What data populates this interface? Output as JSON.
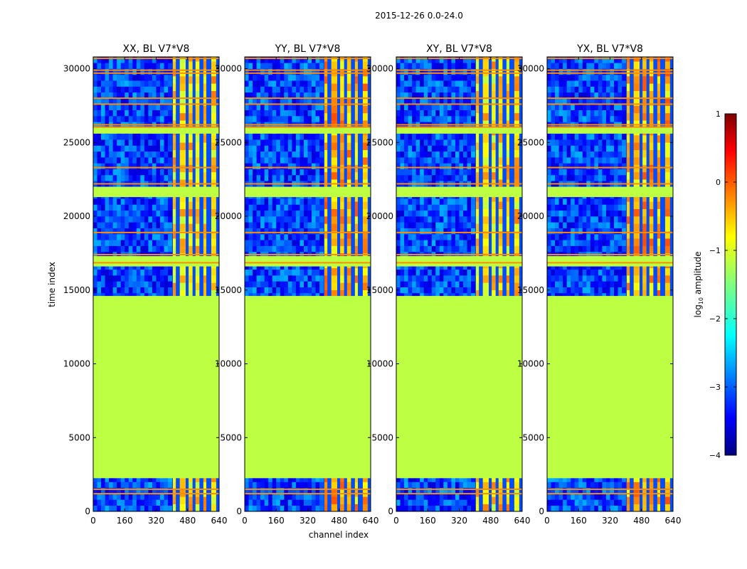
{
  "suptitle": "2015-12-26 0.0-24.0",
  "chart_data": {
    "type": "heatmap",
    "ylabel": "time index",
    "xlabel": "channel index",
    "xlim": [
      0,
      640
    ],
    "ylim": [
      0,
      30800
    ],
    "xticks": [
      0,
      160,
      320,
      480,
      640
    ],
    "yticks": [
      0,
      5000,
      10000,
      15000,
      20000,
      25000,
      30000
    ],
    "panels": [
      {
        "title": "XX, BL V7*V8",
        "ytick_labels": [
          "0",
          "5000",
          "10000",
          "15000",
          "20000",
          "25000",
          "30000"
        ]
      },
      {
        "title": "YY, BL V7*V8",
        "ytick_labels": [
          "0",
          "5000",
          "10000",
          "15000",
          "20000",
          "25000",
          "30000"
        ]
      },
      {
        "title": "XY, BL V7*V8",
        "ytick_labels": [
          "0",
          "5000",
          "10000",
          "15000",
          "20000",
          "25000",
          "30000"
        ]
      },
      {
        "title": "YX, BL V7*V8",
        "ytick_labels": [
          "0",
          "5000",
          "10000",
          "15000",
          "20000",
          "25000",
          "30000"
        ]
      }
    ],
    "colorbar": {
      "label": "log10 amplitude",
      "label_main": "log",
      "label_sub": "10",
      "label_rest": " amplitude",
      "range": [
        -4,
        1
      ],
      "ticks": [
        1,
        0,
        -1,
        -2,
        -3,
        -4
      ],
      "tick_labels": [
        "1",
        "0",
        "−1",
        "−2",
        "−3",
        "−4"
      ]
    },
    "regions": {
      "flagged_value": -1.2,
      "flagged_time_ranges": [
        [
          2250,
          14600
        ],
        [
          16600,
          17300
        ],
        [
          21300,
          22000
        ],
        [
          25600,
          26000
        ]
      ],
      "flagged_time_lines": [
        1200,
        1500,
        16850,
        17400,
        18900,
        22200,
        23300,
        26050,
        26200,
        27600,
        28000,
        29700,
        29900,
        30700
      ],
      "rfi_channel_ranges": [
        [
          405,
          420
        ],
        [
          440,
          470
        ],
        [
          485,
          505
        ],
        [
          520,
          540
        ],
        [
          560,
          575
        ],
        [
          600,
          625
        ]
      ],
      "background_level": -3.0
    }
  }
}
